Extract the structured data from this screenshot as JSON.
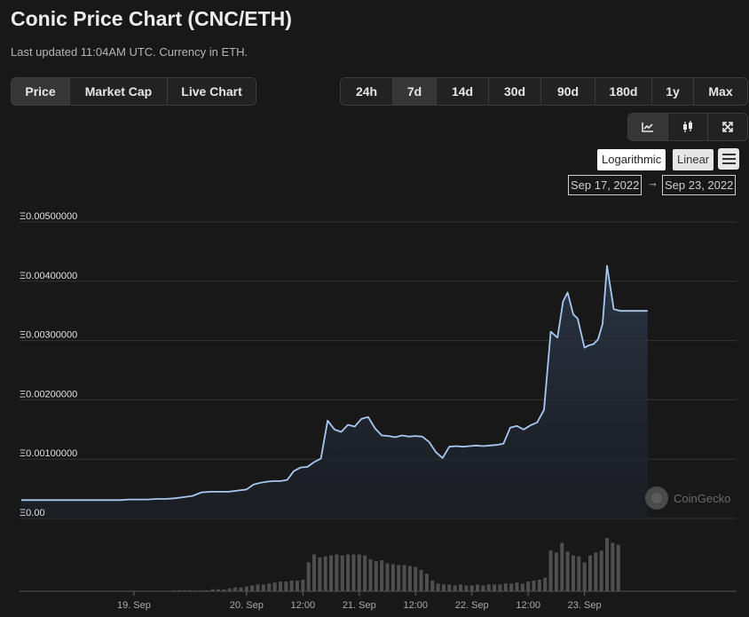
{
  "header": {
    "title": "Conic Price Chart (CNC/ETH)",
    "subtitle": "Last updated 11:04AM UTC. Currency in ETH."
  },
  "view_tabs": [
    {
      "label": "Price",
      "active": true
    },
    {
      "label": "Market Cap",
      "active": false
    },
    {
      "label": "Live Chart",
      "active": false
    }
  ],
  "range_tabs": [
    {
      "label": "24h",
      "active": false
    },
    {
      "label": "7d",
      "active": true
    },
    {
      "label": "14d",
      "active": false
    },
    {
      "label": "30d",
      "active": false
    },
    {
      "label": "90d",
      "active": false
    },
    {
      "label": "180d",
      "active": false
    },
    {
      "label": "1y",
      "active": false
    },
    {
      "label": "Max",
      "active": false
    }
  ],
  "tools": {
    "line_icon": "line-chart-icon",
    "candle_icon": "candlestick-icon",
    "fullscreen_icon": "fullscreen-icon"
  },
  "scale": {
    "log_label": "Logarithmic",
    "linear_label": "Linear",
    "selected": "Linear"
  },
  "date_range": {
    "from": "Sep 17, 2022",
    "arrow": "→",
    "to": "Sep 23, 2022"
  },
  "watermark": "CoinGecko",
  "colors": {
    "background": "#181818",
    "line": "#a8c8f0",
    "volume": "#4f4f4f",
    "grid": "#333333"
  },
  "chart_data": {
    "type": "line",
    "title": "",
    "xlabel": "",
    "ylabel": "",
    "ylim": [
      0,
      0.005
    ],
    "xlim": [
      0,
      6.35
    ],
    "y_ticks": [
      "Ξ0.00",
      "Ξ0.00100000",
      "Ξ0.00200000",
      "Ξ0.00300000",
      "Ξ0.00400000",
      "Ξ0.00500000"
    ],
    "y_tick_values": [
      0,
      0.001,
      0.002,
      0.003,
      0.004,
      0.005
    ],
    "x_ticks": [
      "19. Sep",
      "20. Sep",
      "12:00",
      "21. Sep",
      "12:00",
      "22. Sep",
      "12:00",
      "23. Sep"
    ],
    "x_tick_values": [
      1.0,
      2.0,
      2.5,
      3.0,
      3.5,
      4.0,
      4.5,
      5.0
    ],
    "x_unit": "days",
    "grid": true,
    "legend": "none",
    "series": [
      {
        "x": [
          0,
          0.08,
          0.16,
          0.24,
          0.32,
          0.4,
          0.48,
          0.56,
          0.64,
          0.72,
          0.8,
          0.88,
          0.96,
          1.04,
          1.12,
          1.2,
          1.28,
          1.36,
          1.44,
          1.52,
          1.6,
          1.68,
          1.76,
          1.84,
          1.92,
          2.0,
          2.06,
          2.12,
          2.18,
          2.24,
          2.3,
          2.36,
          2.42,
          2.48,
          2.54,
          2.6,
          2.66,
          2.72,
          2.78,
          2.84,
          2.9,
          2.96,
          3.02,
          3.08,
          3.14,
          3.2,
          3.26,
          3.32,
          3.38,
          3.44,
          3.5,
          3.56,
          3.62,
          3.68,
          3.74,
          3.8,
          3.86,
          3.92,
          3.98,
          4.04,
          4.1,
          4.16,
          4.22,
          4.28,
          4.34,
          4.4,
          4.46,
          4.52,
          4.58,
          4.64,
          4.7,
          4.76,
          4.81,
          4.85,
          4.9,
          4.94,
          5.0,
          5.04,
          5.08,
          5.12,
          5.16,
          5.2,
          5.26,
          5.32,
          5.36,
          5.42,
          5.47,
          5.52,
          5.56
        ],
        "y": [
          0.00031,
          0.00031,
          0.00031,
          0.00031,
          0.00031,
          0.00031,
          0.00031,
          0.00031,
          0.00031,
          0.00031,
          0.00031,
          0.00031,
          0.00032,
          0.00032,
          0.00032,
          0.00033,
          0.00033,
          0.00034,
          0.00036,
          0.00038,
          0.00044,
          0.00045,
          0.00045,
          0.00045,
          0.00047,
          0.00049,
          0.00057,
          0.0006,
          0.00062,
          0.00063,
          0.00063,
          0.00065,
          0.0008,
          0.00086,
          0.00087,
          0.00095,
          0.00101,
          0.00165,
          0.0015,
          0.00146,
          0.00158,
          0.00155,
          0.00168,
          0.00171,
          0.00152,
          0.0014,
          0.00139,
          0.00137,
          0.0014,
          0.00138,
          0.00139,
          0.00138,
          0.00129,
          0.00112,
          0.00102,
          0.00121,
          0.00122,
          0.00121,
          0.00122,
          0.00123,
          0.00122,
          0.00123,
          0.00124,
          0.00126,
          0.00153,
          0.00156,
          0.0015,
          0.00157,
          0.00162,
          0.00183,
          0.00315,
          0.00305,
          0.00366,
          0.00381,
          0.00344,
          0.00337,
          0.00288,
          0.00292,
          0.00294,
          0.00302,
          0.00328,
          0.00426,
          0.00353,
          0.0035,
          0.0035,
          0.0035,
          0.0035,
          0.0035,
          0.0035
        ]
      }
    ],
    "volume": {
      "x": [
        1.35,
        1.4,
        1.45,
        1.5,
        1.55,
        1.6,
        1.65,
        1.7,
        1.75,
        1.8,
        1.85,
        1.9,
        1.95,
        2.0,
        2.05,
        2.1,
        2.15,
        2.2,
        2.25,
        2.3,
        2.35,
        2.4,
        2.45,
        2.5,
        2.55,
        2.6,
        2.65,
        2.7,
        2.75,
        2.8,
        2.85,
        2.9,
        2.95,
        3.0,
        3.05,
        3.1,
        3.15,
        3.2,
        3.25,
        3.3,
        3.35,
        3.4,
        3.45,
        3.5,
        3.55,
        3.6,
        3.65,
        3.7,
        3.75,
        3.8,
        3.85,
        3.9,
        3.95,
        4.0,
        4.05,
        4.1,
        4.15,
        4.2,
        4.25,
        4.3,
        4.35,
        4.4,
        4.45,
        4.5,
        4.55,
        4.6,
        4.65,
        4.7,
        4.75,
        4.8,
        4.85,
        4.9,
        4.95,
        5.0,
        5.05,
        5.1,
        5.15,
        5.2,
        5.25,
        5.3
      ],
      "values": [
        1,
        1,
        1,
        1,
        1,
        1,
        1,
        2,
        2,
        2,
        3,
        4,
        4,
        5,
        6,
        7,
        7,
        8,
        9,
        10,
        10,
        11,
        11,
        12,
        30,
        38,
        35,
        36,
        37,
        38,
        37,
        38,
        38,
        38,
        37,
        33,
        31,
        32,
        29,
        28,
        27,
        27,
        26,
        25,
        22,
        18,
        11,
        8,
        7,
        7,
        6,
        7,
        6,
        6,
        7,
        6,
        7,
        7,
        7,
        8,
        8,
        9,
        8,
        10,
        11,
        12,
        14,
        42,
        40,
        50,
        41,
        37,
        36,
        30,
        37,
        40,
        42,
        55,
        50,
        48
      ]
    }
  }
}
